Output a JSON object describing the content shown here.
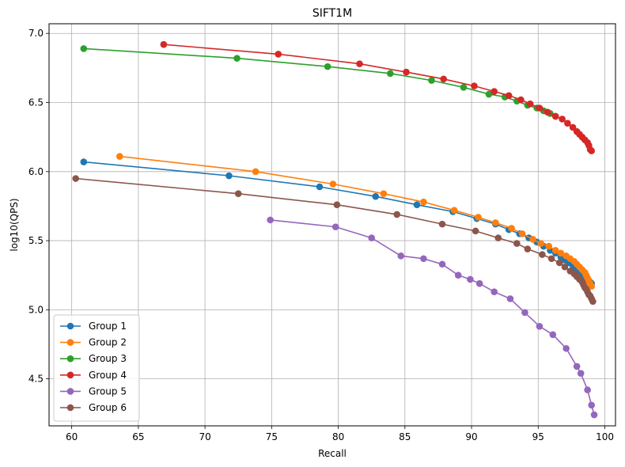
{
  "chart_data": {
    "type": "line",
    "title": "SIFT1M",
    "xlabel": "Recall",
    "ylabel": "log10(QPS)",
    "xlim": [
      58.3,
      100.8
    ],
    "ylim": [
      4.16,
      7.07
    ],
    "xticks": [
      "60",
      "65",
      "70",
      "75",
      "80",
      "85",
      "90",
      "95",
      "100"
    ],
    "yticks": [
      "4.5",
      "5.0",
      "5.5",
      "6.0",
      "6.5",
      "7.0"
    ],
    "grid": true,
    "legend_position": "lower-left",
    "series": [
      {
        "name": "Group 1",
        "color": "#1f77b4",
        "x": [
          60.9,
          71.8,
          78.6,
          82.8,
          85.9,
          88.6,
          90.4,
          91.8,
          92.8,
          93.6,
          94.3,
          94.9,
          95.4,
          95.9,
          96.3,
          96.7,
          97.0,
          97.3,
          97.6,
          97.8,
          98.0,
          98.2,
          98.4,
          98.5,
          98.6,
          98.8,
          98.9,
          99.0
        ],
        "y": [
          6.07,
          5.97,
          5.89,
          5.82,
          5.76,
          5.71,
          5.66,
          5.62,
          5.58,
          5.55,
          5.52,
          5.49,
          5.46,
          5.43,
          5.41,
          5.38,
          5.36,
          5.34,
          5.32,
          5.3,
          5.28,
          5.26,
          5.24,
          5.23,
          5.22,
          5.21,
          5.2,
          5.19
        ]
      },
      {
        "name": "Group 2",
        "color": "#ff7f0e",
        "x": [
          63.6,
          73.8,
          79.6,
          83.4,
          86.4,
          88.7,
          90.5,
          91.8,
          93.0,
          93.8,
          94.6,
          95.2,
          95.8,
          96.3,
          96.7,
          97.1,
          97.4,
          97.7,
          97.9,
          98.1,
          98.3,
          98.5,
          98.6,
          98.7,
          98.8,
          98.9,
          99.0
        ],
        "y": [
          6.11,
          6.0,
          5.91,
          5.84,
          5.78,
          5.72,
          5.67,
          5.63,
          5.59,
          5.55,
          5.51,
          5.48,
          5.46,
          5.43,
          5.41,
          5.39,
          5.37,
          5.35,
          5.33,
          5.31,
          5.29,
          5.27,
          5.25,
          5.23,
          5.21,
          5.19,
          5.17
        ]
      },
      {
        "name": "Group 3",
        "color": "#2ca02c",
        "x": [
          60.9,
          72.4,
          79.2,
          83.9,
          87.0,
          89.4,
          91.3,
          92.5,
          93.4,
          94.2,
          94.9,
          95.4,
          95.9,
          96.3
        ],
        "y": [
          6.89,
          6.82,
          6.76,
          6.71,
          6.66,
          6.61,
          6.56,
          6.54,
          6.51,
          6.48,
          6.46,
          6.44,
          6.42,
          6.4
        ]
      },
      {
        "name": "Group 4",
        "color": "#d62728",
        "x": [
          66.9,
          75.5,
          81.6,
          85.1,
          87.9,
          90.2,
          91.7,
          92.8,
          93.7,
          94.4,
          95.1,
          95.7,
          96.3,
          96.8,
          97.2,
          97.6,
          97.9,
          98.1,
          98.3,
          98.5,
          98.7,
          98.8,
          98.9,
          99.0
        ],
        "y": [
          6.92,
          6.85,
          6.78,
          6.72,
          6.67,
          6.62,
          6.58,
          6.55,
          6.52,
          6.49,
          6.46,
          6.43,
          6.4,
          6.38,
          6.35,
          6.32,
          6.29,
          6.27,
          6.25,
          6.23,
          6.21,
          6.19,
          6.16,
          6.15
        ]
      },
      {
        "name": "Group 5",
        "color": "#9467bd",
        "x": [
          74.9,
          79.8,
          82.5,
          84.7,
          86.4,
          87.8,
          89.0,
          89.9,
          90.6,
          91.7,
          92.9,
          94.0,
          95.1,
          96.1,
          97.1,
          97.9,
          98.2,
          98.7,
          99.0,
          99.2
        ],
        "y": [
          5.65,
          5.6,
          5.52,
          5.39,
          5.37,
          5.33,
          5.25,
          5.22,
          5.19,
          5.13,
          5.08,
          4.98,
          4.88,
          4.82,
          4.72,
          4.59,
          4.54,
          4.42,
          4.31,
          4.24
        ]
      },
      {
        "name": "Group 6",
        "color": "#8c564b",
        "x": [
          60.3,
          72.5,
          79.9,
          84.4,
          87.8,
          90.3,
          92.0,
          93.4,
          94.2,
          95.3,
          96.0,
          96.6,
          97.0,
          97.4,
          97.7,
          97.9,
          98.1,
          98.3,
          98.4,
          98.5,
          98.6,
          98.7,
          98.8,
          98.9,
          99.0,
          99.1
        ],
        "y": [
          5.95,
          5.84,
          5.76,
          5.69,
          5.62,
          5.57,
          5.52,
          5.48,
          5.44,
          5.4,
          5.37,
          5.34,
          5.31,
          5.28,
          5.26,
          5.24,
          5.22,
          5.2,
          5.18,
          5.16,
          5.15,
          5.13,
          5.11,
          5.1,
          5.08,
          5.06
        ]
      }
    ]
  }
}
